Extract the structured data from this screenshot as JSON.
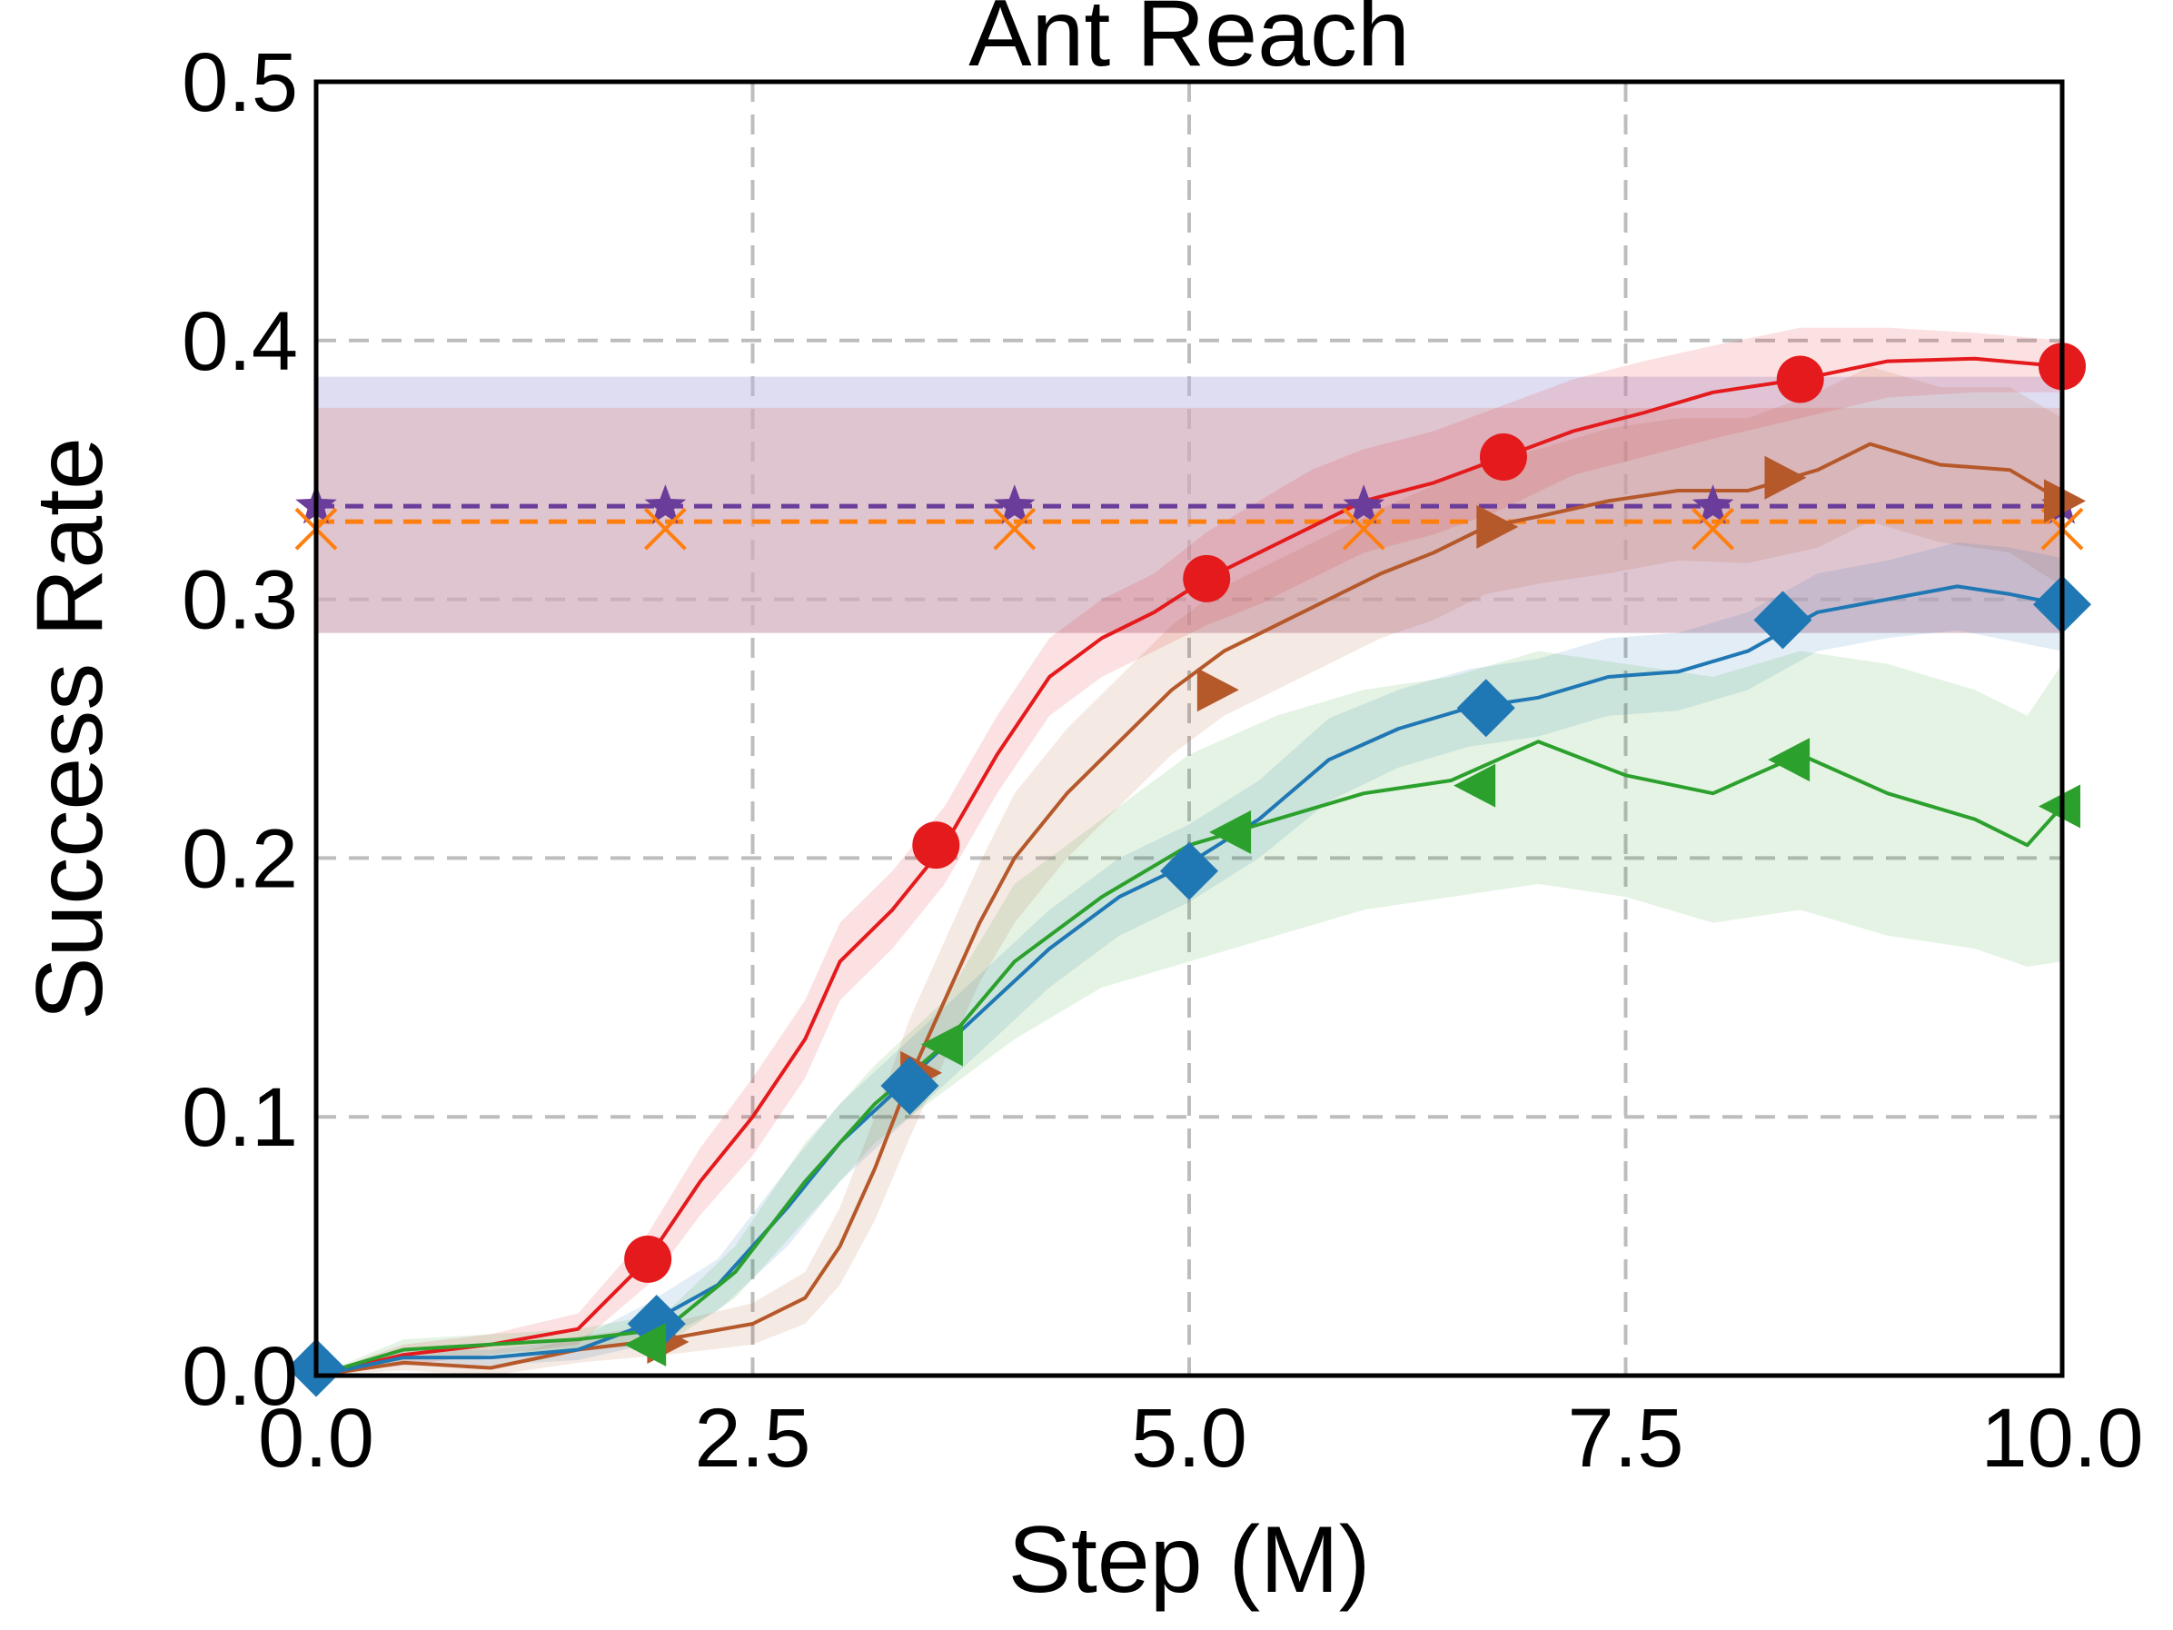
{
  "chart_data": {
    "type": "line",
    "title": "Ant Reach",
    "xlabel": "Step (M)",
    "ylabel": "Success Rate",
    "xlim": [
      0,
      10
    ],
    "ylim": [
      0,
      0.5
    ],
    "xticks": [
      0,
      2.5,
      5,
      7.5,
      10
    ],
    "xtick_labels": [
      "0.0",
      "2.5",
      "5.0",
      "7.5",
      "10.0"
    ],
    "yticks": [
      0,
      0.1,
      0.2,
      0.3,
      0.4,
      0.5
    ],
    "ytick_labels": [
      "0.0",
      "0.1",
      "0.2",
      "0.3",
      "0.4",
      "0.5"
    ],
    "grid": true,
    "baselines": [
      {
        "color": "#6a3d9a",
        "marker": "star",
        "value": 0.336,
        "band": [
          0.287,
          0.386
        ],
        "band_color": "#b9b3e0",
        "marker_x": [
          0,
          2,
          4,
          6,
          8,
          10
        ]
      },
      {
        "color": "#ff7f0e",
        "marker": "x",
        "value": 0.33,
        "band": [
          0.287,
          0.374
        ],
        "band_color": "#e0a8a8",
        "marker_x": [
          0,
          2,
          4,
          6,
          8,
          10
        ]
      }
    ],
    "series": [
      {
        "color": "#e41a1c",
        "marker": "circle",
        "x": [
          0,
          0.5,
          1.0,
          1.5,
          1.9,
          2.2,
          2.5,
          2.8,
          3.0,
          3.3,
          3.6,
          3.9,
          4.2,
          4.5,
          4.8,
          5.1,
          5.4,
          5.7,
          6.0,
          6.4,
          6.8,
          7.2,
          7.6,
          8.0,
          8.5,
          9.0,
          9.5,
          10.0
        ],
        "y": [
          0.0,
          0.008,
          0.012,
          0.018,
          0.045,
          0.075,
          0.1,
          0.13,
          0.16,
          0.18,
          0.205,
          0.24,
          0.27,
          0.285,
          0.295,
          0.308,
          0.318,
          0.328,
          0.338,
          0.345,
          0.355,
          0.365,
          0.372,
          0.38,
          0.385,
          0.392,
          0.393,
          0.39
        ],
        "band_lo": [
          0.0,
          0.004,
          0.008,
          0.012,
          0.035,
          0.062,
          0.085,
          0.115,
          0.145,
          0.165,
          0.19,
          0.225,
          0.255,
          0.27,
          0.28,
          0.29,
          0.298,
          0.308,
          0.318,
          0.325,
          0.335,
          0.348,
          0.355,
          0.362,
          0.37,
          0.378,
          0.38,
          0.38
        ],
        "band_hi": [
          0.0,
          0.012,
          0.016,
          0.024,
          0.055,
          0.088,
          0.115,
          0.145,
          0.175,
          0.195,
          0.22,
          0.255,
          0.285,
          0.3,
          0.31,
          0.326,
          0.338,
          0.35,
          0.358,
          0.365,
          0.375,
          0.385,
          0.392,
          0.398,
          0.405,
          0.405,
          0.403,
          0.4
        ],
        "marker_x": [
          1.9,
          3.55,
          5.1,
          6.8,
          8.5,
          10.0
        ],
        "marker_y": [
          0.045,
          0.205,
          0.308,
          0.355,
          0.385,
          0.39
        ]
      },
      {
        "color": "#b5582a",
        "marker": "triangle-right",
        "x": [
          0,
          0.5,
          1.0,
          1.5,
          2.0,
          2.5,
          2.8,
          3.0,
          3.2,
          3.4,
          3.6,
          3.8,
          4.0,
          4.3,
          4.6,
          4.9,
          5.2,
          5.5,
          5.8,
          6.1,
          6.4,
          6.7,
          7.0,
          7.4,
          7.8,
          8.2,
          8.6,
          8.9,
          9.3,
          9.7,
          10.0
        ],
        "y": [
          0.0,
          0.005,
          0.003,
          0.01,
          0.014,
          0.02,
          0.03,
          0.05,
          0.08,
          0.115,
          0.145,
          0.175,
          0.2,
          0.225,
          0.245,
          0.265,
          0.28,
          0.29,
          0.3,
          0.31,
          0.318,
          0.328,
          0.332,
          0.338,
          0.342,
          0.342,
          0.35,
          0.36,
          0.352,
          0.35,
          0.338
        ],
        "band_lo": [
          0.0,
          0.002,
          0.0,
          0.005,
          0.008,
          0.012,
          0.02,
          0.035,
          0.06,
          0.092,
          0.122,
          0.152,
          0.175,
          0.2,
          0.22,
          0.24,
          0.255,
          0.265,
          0.275,
          0.285,
          0.292,
          0.302,
          0.306,
          0.31,
          0.315,
          0.314,
          0.32,
          0.33,
          0.322,
          0.318,
          0.305
        ],
        "band_hi": [
          0.0,
          0.008,
          0.006,
          0.015,
          0.02,
          0.028,
          0.04,
          0.065,
          0.1,
          0.138,
          0.168,
          0.198,
          0.225,
          0.25,
          0.27,
          0.29,
          0.305,
          0.315,
          0.325,
          0.335,
          0.344,
          0.354,
          0.358,
          0.366,
          0.37,
          0.37,
          0.38,
          0.39,
          0.382,
          0.382,
          0.37
        ],
        "marker_x": [
          2.0,
          3.45,
          5.15,
          6.75,
          8.4,
          10.0
        ],
        "marker_y": [
          0.013,
          0.117,
          0.265,
          0.328,
          0.347,
          0.338
        ]
      },
      {
        "color": "#1f77b4",
        "marker": "diamond",
        "x": [
          0,
          0.5,
          1.0,
          1.5,
          1.9,
          2.3,
          2.7,
          3.0,
          3.4,
          3.8,
          4.2,
          4.6,
          5.0,
          5.4,
          5.8,
          6.2,
          6.6,
          7.0,
          7.4,
          7.8,
          8.2,
          8.6,
          9.0,
          9.4,
          9.7,
          10.0
        ],
        "y": [
          0.0,
          0.007,
          0.007,
          0.01,
          0.02,
          0.035,
          0.065,
          0.09,
          0.115,
          0.14,
          0.165,
          0.185,
          0.198,
          0.215,
          0.238,
          0.25,
          0.258,
          0.262,
          0.27,
          0.272,
          0.28,
          0.295,
          0.3,
          0.305,
          0.302,
          0.298
        ],
        "band_lo": [
          0.0,
          0.004,
          0.004,
          0.006,
          0.012,
          0.025,
          0.05,
          0.075,
          0.1,
          0.125,
          0.15,
          0.17,
          0.183,
          0.2,
          0.222,
          0.235,
          0.243,
          0.247,
          0.255,
          0.257,
          0.265,
          0.28,
          0.285,
          0.288,
          0.284,
          0.28
        ],
        "band_hi": [
          0.0,
          0.01,
          0.01,
          0.014,
          0.028,
          0.045,
          0.08,
          0.105,
          0.13,
          0.155,
          0.18,
          0.2,
          0.213,
          0.23,
          0.254,
          0.265,
          0.273,
          0.277,
          0.285,
          0.287,
          0.295,
          0.31,
          0.315,
          0.322,
          0.32,
          0.316
        ],
        "marker_x": [
          0.0,
          1.95,
          3.4,
          5.0,
          6.7,
          8.4,
          10.0
        ],
        "marker_y": [
          0.003,
          0.02,
          0.112,
          0.195,
          0.258,
          0.292,
          0.298
        ]
      },
      {
        "color": "#2ca02c",
        "marker": "triangle-left",
        "x": [
          0,
          0.5,
          1.0,
          1.5,
          2.0,
          2.4,
          2.8,
          3.2,
          3.6,
          4.0,
          4.5,
          5.0,
          5.5,
          6.0,
          6.5,
          7.0,
          7.5,
          8.0,
          8.5,
          9.0,
          9.5,
          9.8,
          10.0
        ],
        "y": [
          0.0,
          0.01,
          0.012,
          0.014,
          0.018,
          0.04,
          0.075,
          0.105,
          0.128,
          0.16,
          0.185,
          0.205,
          0.215,
          0.225,
          0.23,
          0.245,
          0.232,
          0.225,
          0.24,
          0.225,
          0.215,
          0.205,
          0.22
        ],
        "band_lo": [
          0.0,
          0.006,
          0.008,
          0.01,
          0.012,
          0.03,
          0.06,
          0.09,
          0.11,
          0.13,
          0.15,
          0.16,
          0.17,
          0.18,
          0.185,
          0.19,
          0.185,
          0.175,
          0.18,
          0.17,
          0.165,
          0.158,
          0.16
        ],
        "band_hi": [
          0.0,
          0.014,
          0.016,
          0.018,
          0.024,
          0.05,
          0.09,
          0.12,
          0.145,
          0.19,
          0.215,
          0.24,
          0.255,
          0.265,
          0.27,
          0.28,
          0.275,
          0.27,
          0.28,
          0.275,
          0.265,
          0.255,
          0.275
        ],
        "marker_x": [
          1.9,
          3.6,
          5.25,
          6.65,
          8.45,
          10.0
        ],
        "marker_y": [
          0.012,
          0.128,
          0.21,
          0.228,
          0.238,
          0.22
        ]
      }
    ]
  }
}
